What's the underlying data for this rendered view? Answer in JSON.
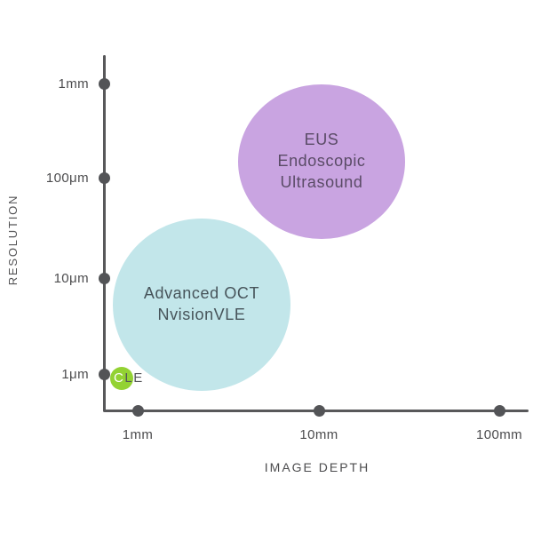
{
  "chart_data": {
    "type": "bubble",
    "title": "",
    "background": "#ffffff",
    "axis_color": "#58585a",
    "tick_label_color": "#4c4c4e",
    "grid": false,
    "legend": "none",
    "x_axis": {
      "label": "IMAGE DEPTH",
      "scale": "log",
      "unit": "mm",
      "range_mm": [
        0.6,
        130
      ],
      "ticks": [
        {
          "label": "1mm",
          "px": 155
        },
        {
          "label": "10mm",
          "px": 359
        },
        {
          "label": "100mm",
          "px": 562
        }
      ]
    },
    "y_axis": {
      "label": "RESOLUTION",
      "scale": "log",
      "unit": "μm",
      "range_um": [
        0.7,
        2000
      ],
      "ticks": [
        {
          "label": "1mm",
          "py": 94
        },
        {
          "label": "100μm",
          "py": 200
        },
        {
          "label": "10μm",
          "py": 313
        },
        {
          "label": "1μm",
          "py": 421
        }
      ]
    },
    "series": [
      {
        "name": "EUS Endoscopic Ultrasound",
        "label_lines": [
          "EUS",
          "Endoscopic",
          "Ultrasound"
        ],
        "depth_mm": 10,
        "resolution_um": 150,
        "cx": 362,
        "cy": 182,
        "rx": 94,
        "ry": 87,
        "fill": "#c9a4e1",
        "text_color": "#5a4b66",
        "font_px": 18
      },
      {
        "name": "Advanced OCT NvisionVLE",
        "label_lines": [
          "Advanced OCT",
          "NvisionVLE"
        ],
        "depth_mm": 2.2,
        "resolution_um": 5,
        "cx": 227,
        "cy": 343,
        "rx": 100,
        "ry": 97,
        "fill": "#c2e6ea",
        "text_color": "#47545a",
        "font_px": 18
      },
      {
        "name": "CLE",
        "label_chars": [
          {
            "ch": "C",
            "color": "#ffffff"
          },
          {
            "ch": "L",
            "color": "#545659"
          },
          {
            "ch": "E",
            "color": "#545659"
          }
        ],
        "depth_mm": 0.8,
        "resolution_um": 1,
        "cx": 137,
        "cy": 426,
        "rx": 13,
        "ry": 13,
        "fill": "#93d233",
        "text_color": "#ffffff",
        "font_px": 15
      }
    ]
  }
}
